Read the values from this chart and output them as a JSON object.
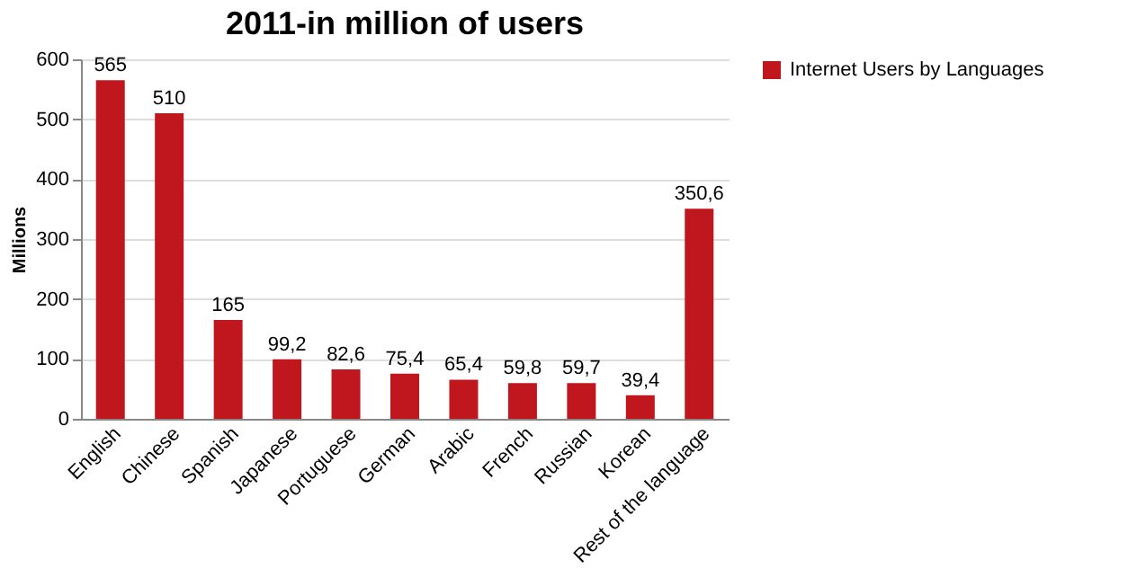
{
  "chart_data": {
    "type": "bar",
    "title": "2011-in million of users",
    "ylabel": "Millions",
    "categories": [
      "English",
      "Chinese",
      "Spanish",
      "Japanese",
      "Portuguese",
      "German",
      "Arabic",
      "French",
      "Russian",
      "Korean",
      "Rest of the language"
    ],
    "series": [
      {
        "name": "Internet Users by Languages",
        "color": "#c0161e",
        "values": [
          565,
          510,
          165,
          99.2,
          82.6,
          75.4,
          65.4,
          59.8,
          59.7,
          39.4,
          350.6
        ],
        "value_labels": [
          "565",
          "510",
          "165",
          "99,2",
          "82,6",
          "75,4",
          "65,4",
          "59,8",
          "59,7",
          "39,4",
          "350,6"
        ]
      }
    ],
    "ylim": [
      0,
      600
    ],
    "yticks": [
      0,
      100,
      200,
      300,
      400,
      500,
      600
    ],
    "grid": "y",
    "legend": "right"
  }
}
